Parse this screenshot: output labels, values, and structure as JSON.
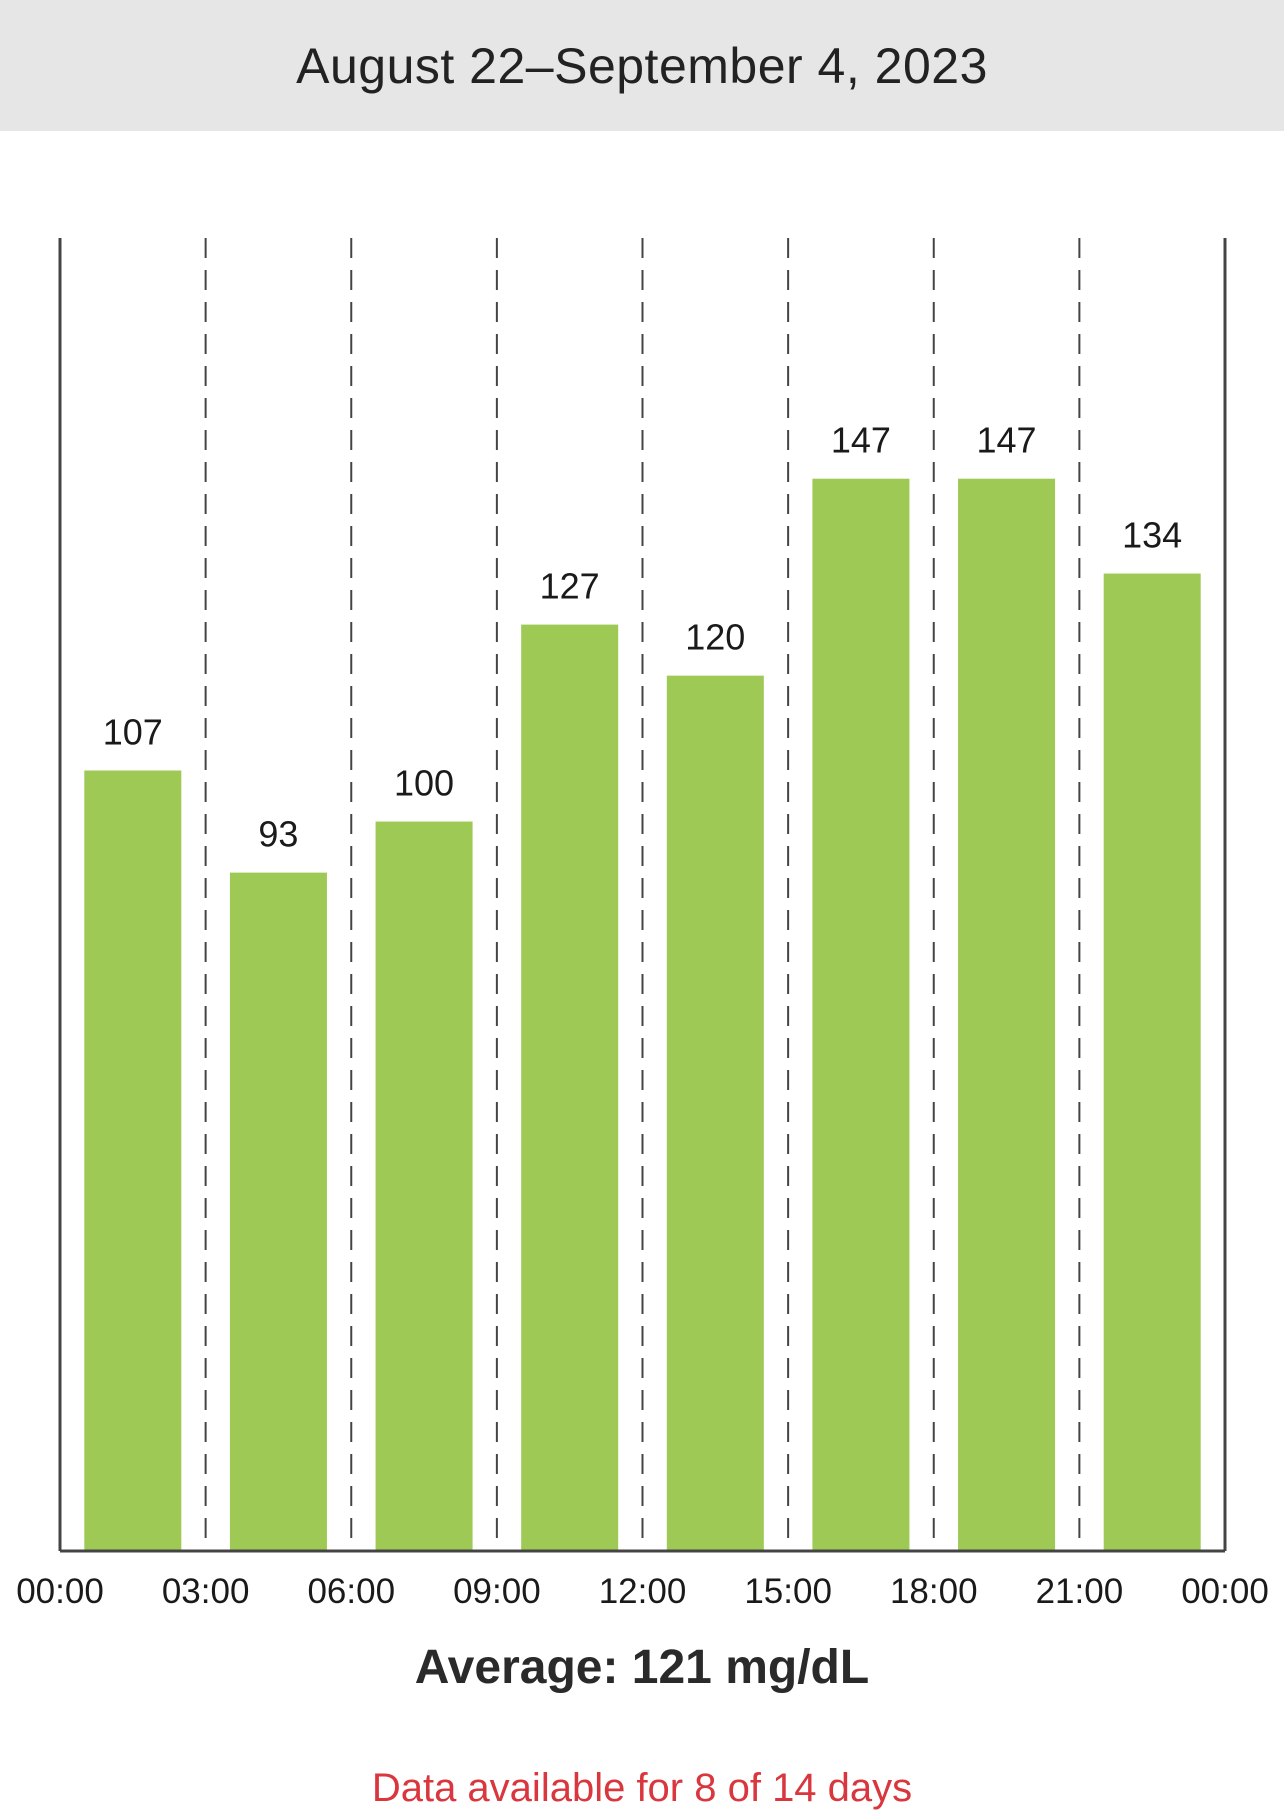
{
  "header": {
    "date_range": "August 22–September 4, 2023"
  },
  "chart_data": {
    "type": "bar",
    "categories": [
      "00:00–03:00",
      "03:00–06:00",
      "06:00–09:00",
      "09:00–12:00",
      "12:00–15:00",
      "15:00–18:00",
      "18:00–21:00",
      "21:00–00:00"
    ],
    "x_tick_labels": [
      "00:00",
      "03:00",
      "06:00",
      "09:00",
      "12:00",
      "15:00",
      "18:00",
      "21:00",
      "00:00"
    ],
    "values": [
      107,
      93,
      100,
      127,
      120,
      147,
      147,
      134
    ],
    "data_labels": [
      "107",
      "93",
      "100",
      "127",
      "120",
      "147",
      "147",
      "134"
    ],
    "bar_color": "#9dc954",
    "grid": "dashed vertical",
    "ylim": [
      0,
      180
    ]
  },
  "summary": {
    "average_text": "Average: 121 mg/dL",
    "availability_text": "Data available for 8 of 14 days"
  },
  "colors": {
    "header_background": "#e6e6e6",
    "bar": "#9dc954",
    "availability_text": "#d9363e"
  }
}
